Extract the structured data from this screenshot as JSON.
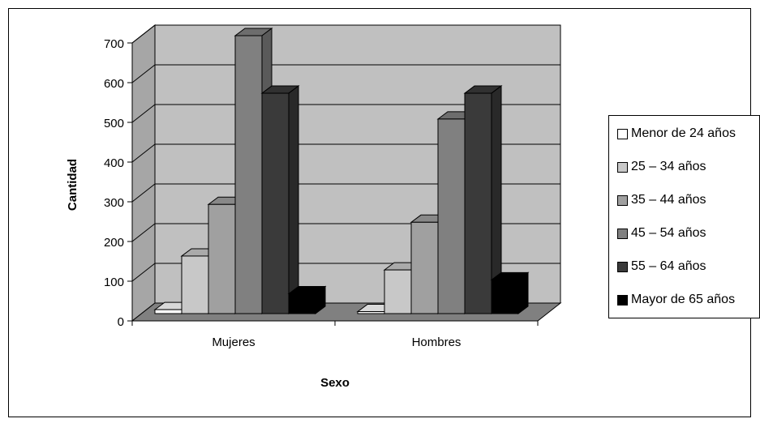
{
  "chart_data": {
    "type": "bar",
    "xlabel": "Sexo",
    "ylabel": "Cantidad",
    "ylim": [
      0,
      700
    ],
    "yticks": [
      "0",
      "100",
      "200",
      "300",
      "400",
      "500",
      "600",
      "700"
    ],
    "categories": [
      "Mujeres",
      "Hombres"
    ],
    "grid": true,
    "legend_position": "right",
    "series": [
      {
        "name": "Menor de 24 años",
        "color": "#ffffff",
        "values": [
          10,
          5
        ]
      },
      {
        "name": "25 – 34 años",
        "color": "#c8c8c8",
        "values": [
          145,
          110
        ]
      },
      {
        "name": "35 – 44 años",
        "color": "#a0a0a0",
        "values": [
          275,
          230
        ]
      },
      {
        "name": "45 – 54 años",
        "color": "#808080",
        "values": [
          700,
          490
        ]
      },
      {
        "name": "55 – 64 años",
        "color": "#3a3a3a",
        "values": [
          555,
          555
        ]
      },
      {
        "name": "Mayor de 65 años",
        "color": "#000000",
        "values": [
          50,
          85
        ]
      }
    ]
  }
}
